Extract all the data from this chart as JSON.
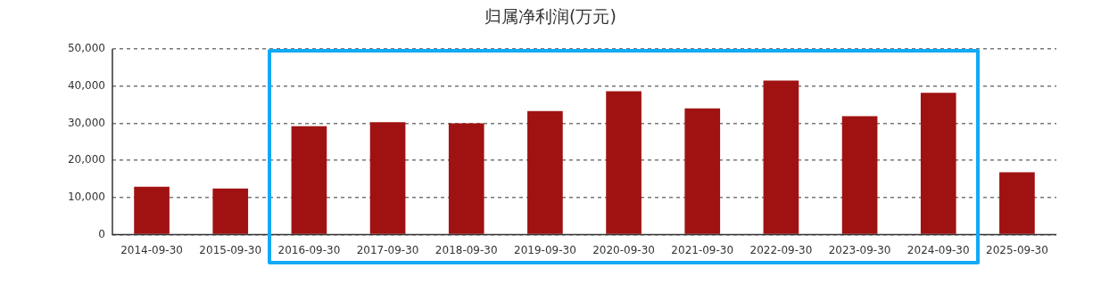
{
  "chart_data": {
    "type": "bar",
    "title": "归属净利润(万元)",
    "categories": [
      "2014-09-30",
      "2015-09-30",
      "2016-09-30",
      "2017-09-30",
      "2018-09-30",
      "2019-09-30",
      "2020-09-30",
      "2021-09-30",
      "2022-09-30",
      "2023-09-30",
      "2024-09-30",
      "2025-09-30"
    ],
    "values": [
      12900,
      12400,
      29200,
      30300,
      30000,
      33300,
      38600,
      34000,
      41500,
      31900,
      38200,
      16800
    ],
    "color": "#a01212",
    "ylim": [
      0,
      50000
    ],
    "yticks": [
      {
        "value": 0,
        "label": "0"
      },
      {
        "value": 10000,
        "label": "10,000"
      },
      {
        "value": 20000,
        "label": "20,000"
      },
      {
        "value": 30000,
        "label": "30,000"
      },
      {
        "value": 40000,
        "label": "40,000"
      },
      {
        "value": 50000,
        "label": "50,000"
      }
    ],
    "grid": "y",
    "legend": false
  }
}
